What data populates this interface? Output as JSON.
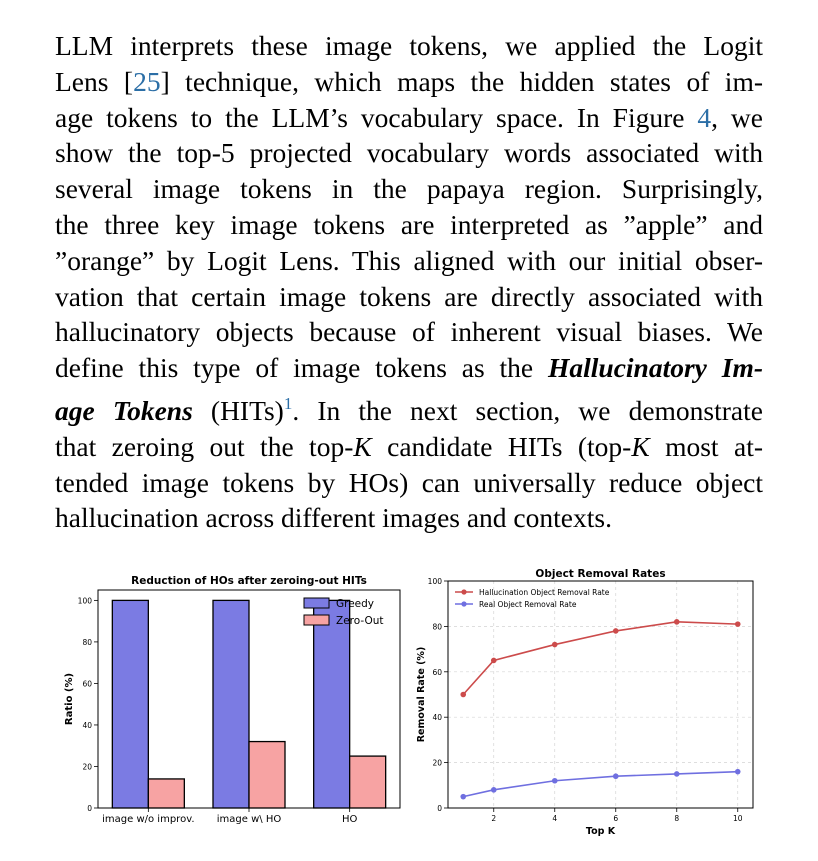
{
  "paragraph": {
    "lines": [
      [
        {
          "t": "LLM interprets these image tokens, we applied the Logit"
        }
      ],
      [
        {
          "t": "Lens ["
        },
        {
          "t": "25",
          "c": "cite"
        },
        {
          "t": "] technique, which maps the hidden states of im-"
        }
      ],
      [
        {
          "t": "age tokens to the LLM’s vocabulary space. In Figure "
        },
        {
          "t": "4",
          "c": "cite"
        },
        {
          "t": ", we"
        }
      ],
      [
        {
          "t": "show the top-5 projected vocabulary words associated with"
        }
      ],
      [
        {
          "t": "several image tokens in the papaya region.  Surprisingly,"
        }
      ],
      [
        {
          "t": "the three key image tokens are interpreted as ”apple” and"
        }
      ],
      [
        {
          "t": "”orange” by Logit Lens. This aligned with our initial obser-"
        }
      ],
      [
        {
          "t": "vation that certain image tokens are directly associated with"
        }
      ],
      [
        {
          "t": "hallucinatory objects because of inherent visual biases. We"
        }
      ],
      [
        {
          "t": "define this type of image tokens as the "
        },
        {
          "t": "Hallucinatory Im-",
          "c": "bi"
        }
      ],
      [
        {
          "t": "age Tokens",
          "c": "bi"
        },
        {
          "t": " (HITs)"
        },
        {
          "t": "1",
          "c": "sup"
        },
        {
          "t": ".  In the next section, we demonstrate"
        }
      ],
      [
        {
          "t": "that zeroing out the top-"
        },
        {
          "t": "K",
          "c": "mathk"
        },
        {
          "t": " candidate HITs (top-"
        },
        {
          "t": "K",
          "c": "mathk"
        },
        {
          "t": " most at-"
        }
      ],
      [
        {
          "t": "tended image tokens by HOs) can universally reduce object"
        }
      ],
      [
        {
          "t": "hallucination across different images and contexts."
        }
      ]
    ]
  },
  "chart_data": [
    {
      "type": "bar",
      "title": "Reduction of HOs after zeroing-out HITs",
      "xlabel": "",
      "ylabel": "Ratio (%)",
      "ylim": [
        0,
        105
      ],
      "yticks": [
        0,
        20,
        40,
        60,
        80,
        100
      ],
      "categories": [
        "image w/o improv.",
        "image w\\ HO",
        "HO"
      ],
      "series": [
        {
          "name": "Greedy",
          "values": [
            100,
            100,
            100
          ],
          "color": "#7b7be3"
        },
        {
          "name": "Zero-Out",
          "values": [
            14,
            32,
            25
          ],
          "color": "#f7a3a3"
        }
      ],
      "legend_position": "top-right",
      "grid": false
    },
    {
      "type": "line",
      "title": "Object Removal Rates",
      "xlabel": "Top K",
      "ylabel": "Removal Rate (%)",
      "xlim": [
        0.5,
        10.5
      ],
      "ylim": [
        0,
        100
      ],
      "xticks": [
        2,
        4,
        6,
        8,
        10
      ],
      "yticks": [
        0,
        20,
        40,
        60,
        80,
        100
      ],
      "x": [
        1,
        2,
        4,
        6,
        8,
        10
      ],
      "series": [
        {
          "name": "Hallucination Object Removal Rate",
          "values": [
            50,
            65,
            72,
            78,
            82,
            81
          ],
          "color": "#cc4b4b"
        },
        {
          "name": "Real Object Removal Rate",
          "values": [
            5,
            8,
            12,
            14,
            15,
            16
          ],
          "color": "#6f6fe0"
        }
      ],
      "legend_position": "top-left",
      "grid": true
    }
  ]
}
